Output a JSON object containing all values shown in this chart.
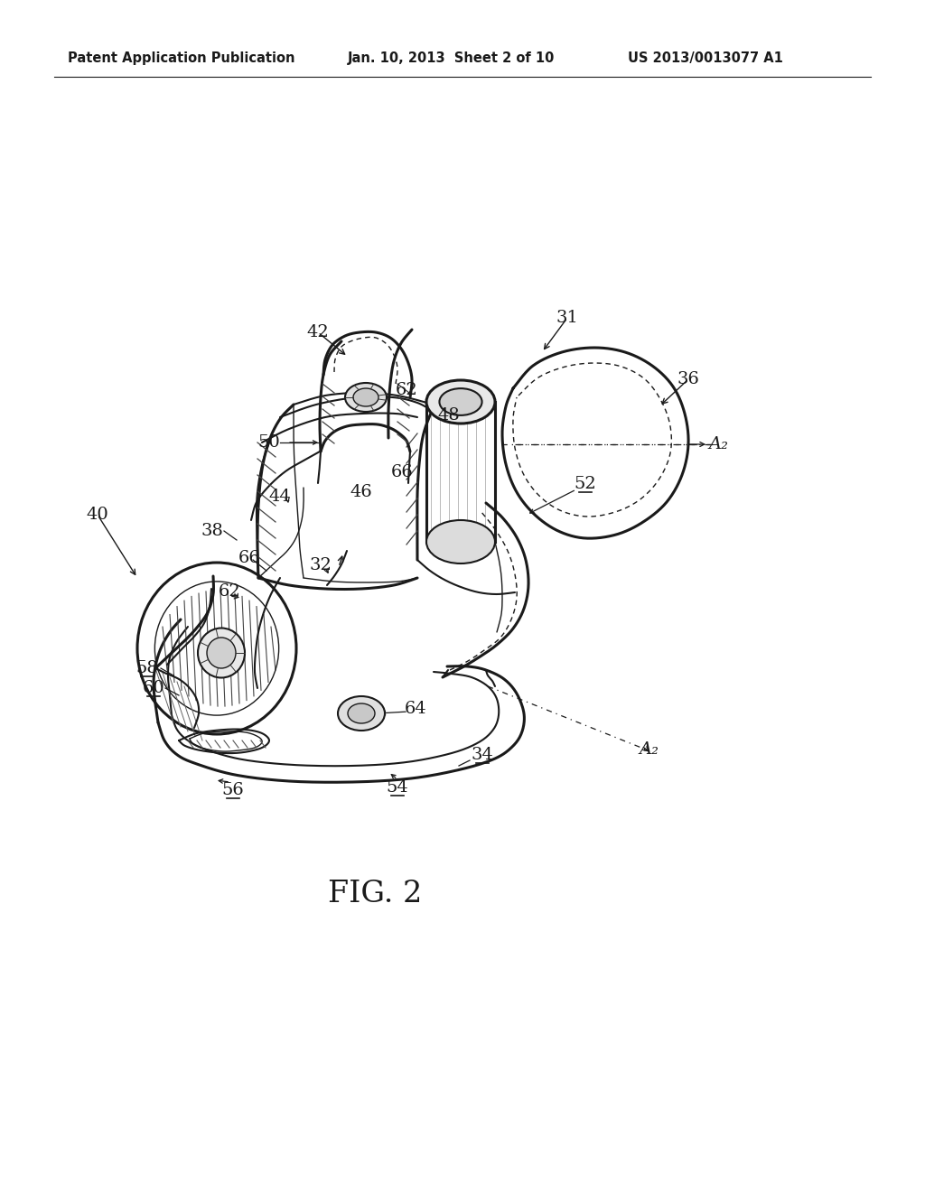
{
  "bg_color": "#f5f5f0",
  "header_left": "Patent Application Publication",
  "header_center": "Jan. 10, 2013  Sheet 2 of 10",
  "header_right": "US 2013/0013077 A1",
  "fig_label": "FIG. 2",
  "header_fontsize": 10.5,
  "fig_label_fontsize": 24,
  "page_bg": "#ffffff"
}
